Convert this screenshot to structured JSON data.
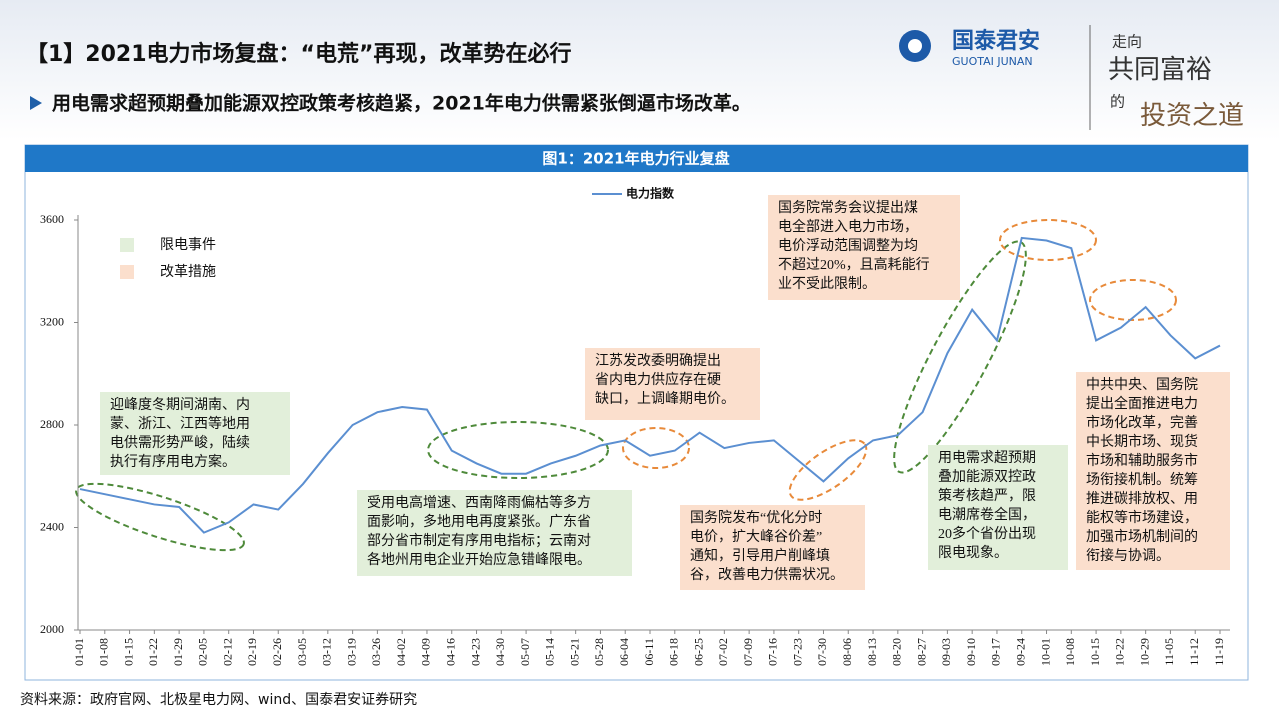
{
  "header": {
    "title": "【1】2021电力市场复盘：“电荒”再现，改革势在必行",
    "subtitle": "用电需求超预期叠加能源双控政策考核趋紧，2021年电力供需紧张倒逼市场改革。",
    "logo_cn": "国泰君安",
    "logo_en": "GUOTAI JUNAN",
    "slogan": [
      "走向",
      "共同富裕",
      "的",
      "投资之道"
    ]
  },
  "chart_data": {
    "type": "line",
    "title": "图1：2021年电力行业复盘",
    "categories": [
      "01-01",
      "01-08",
      "01-15",
      "01-22",
      "01-29",
      "02-05",
      "02-12",
      "02-19",
      "02-26",
      "03-05",
      "03-12",
      "03-19",
      "03-26",
      "04-02",
      "04-09",
      "04-16",
      "04-23",
      "04-30",
      "05-07",
      "05-14",
      "05-21",
      "05-28",
      "06-04",
      "06-11",
      "06-18",
      "06-25",
      "07-02",
      "07-09",
      "07-16",
      "07-23",
      "07-30",
      "08-06",
      "08-13",
      "08-20",
      "08-27",
      "09-03",
      "09-10",
      "09-17",
      "09-24",
      "10-01",
      "10-08",
      "10-15",
      "10-22",
      "10-29",
      "11-05",
      "11-12",
      "11-19"
    ],
    "series": [
      {
        "name": "电力指数",
        "color": "#5b8fd1",
        "values": [
          2550,
          2530,
          2510,
          2490,
          2480,
          2380,
          2420,
          2490,
          2470,
          2570,
          2690,
          2800,
          2850,
          2870,
          2860,
          2700,
          2650,
          2610,
          2610,
          2650,
          2680,
          2720,
          2740,
          2680,
          2700,
          2770,
          2710,
          2730,
          2740,
          2660,
          2580,
          2670,
          2740,
          2760,
          2850,
          3080,
          3250,
          3130,
          3530,
          3520,
          3490,
          3130,
          3180,
          3260,
          3150,
          3060,
          3110
        ]
      }
    ],
    "ylim": [
      2000,
      3600
    ],
    "yticks": [
      2000,
      2400,
      2800,
      3200,
      3600
    ],
    "grid": false,
    "event_types": [
      {
        "name": "限电事件",
        "color": "#e2efda"
      },
      {
        "name": "改革措施",
        "color": "#fbdfcd"
      }
    ],
    "annotations": [
      [
        "迎峰度冬期间湖南、内",
        "蒙、浙江、江西等地用",
        "电供需形势严峻，陆续",
        "执行有序用电方案。"
      ],
      [
        "受用电高增速、西南降雨偏枯等多方",
        "面影响，多地用电再度紧张。广东省",
        "部分省市制定有序用电指标；云南对",
        "各地州用电企业开始应急错峰限电。"
      ],
      [
        "江苏发改委明确提出",
        "省内电力供应存在硬",
        "缺口，上调峰期电价。"
      ],
      [
        "国务院发布“优化分时",
        "电价，扩大峰谷价差”",
        "通知，引导用户削峰填",
        "谷，改善电力供需状况。"
      ],
      [
        "国务院常务会议提出煤",
        "电全部进入电力市场，",
        "电价浮动范围调整为均",
        "不超过20%，且高耗能行",
        "业不受此限制。"
      ],
      [
        "用电需求超预期",
        "叠加能源双控政",
        "策考核趋严，限",
        "电潮席卷全国，",
        "20多个省份出现",
        "限电现象。"
      ],
      [
        "中共中央、国务院",
        "提出全面推进电力",
        "市场化改革，完善",
        "中长期市场、现货",
        "市场和辅助服务市",
        "场衔接机制。统筹",
        "推进碳排放权、用",
        "能权等市场建设，",
        "加强市场机制间的",
        "衔接与协调。"
      ]
    ]
  },
  "source": "资料来源：政府官网、北极星电力网、wind、国泰君安证券研究"
}
